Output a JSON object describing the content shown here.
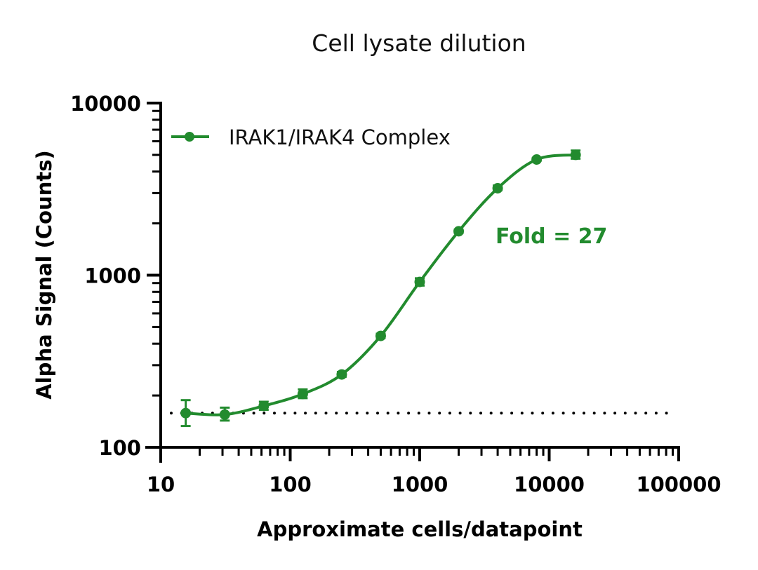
{
  "chart_data": {
    "type": "line",
    "title": "Cell lysate dilution",
    "xlabel": "Approximate cells/datapoint",
    "ylabel": "Alpha Signal (Counts)",
    "xscale": "log",
    "yscale": "log",
    "xlim": [
      10,
      100000
    ],
    "ylim": [
      100,
      10000
    ],
    "x_ticks": [
      "10",
      "100",
      "1000",
      "10000",
      "100000"
    ],
    "y_ticks": [
      "100",
      "1000",
      "10000"
    ],
    "grid": false,
    "legend_position": "upper left",
    "series": [
      {
        "name": "IRAK1/IRAK4 Complex",
        "color": "#228B2E",
        "marker": "circle",
        "fit": "sigmoidal curve",
        "x": [
          15.6,
          31.25,
          62.5,
          125,
          250,
          500,
          1000,
          2000,
          4000,
          8000,
          16000
        ],
        "y": [
          158,
          155,
          174,
          204,
          265,
          444,
          914,
          1800,
          3200,
          4700,
          5000
        ],
        "error_low": [
          133,
          143,
          165,
          193,
          257,
          432,
          870,
          1760,
          3120,
          4620,
          4750
        ],
        "error_high": [
          188,
          170,
          184,
          217,
          274,
          457,
          960,
          1840,
          3320,
          4780,
          5300
        ]
      }
    ],
    "reference_lines": [
      {
        "type": "horizontal",
        "style": "dotted",
        "y": 158,
        "x_range": [
          10,
          100000
        ],
        "color": "#000000"
      }
    ],
    "annotations": [
      {
        "text": "Fold = 27",
        "x": 2500,
        "y": 1300,
        "color": "#228B2E"
      }
    ]
  },
  "title": "Cell lysate dilution",
  "legend_label": "IRAK1/IRAK4 Complex",
  "annotation_text": "Fold = 27",
  "xlabel": "Approximate cells/datapoint",
  "ylabel": "Alpha Signal (Counts)"
}
